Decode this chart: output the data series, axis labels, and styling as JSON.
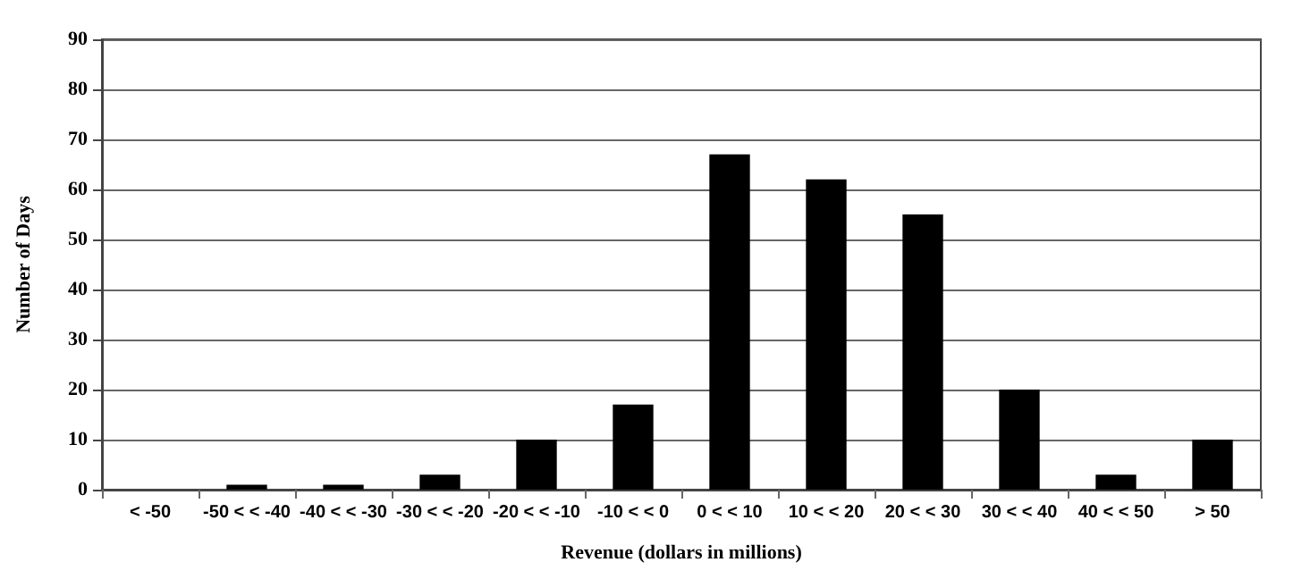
{
  "chart_data": {
    "type": "bar",
    "xlabel": "Revenue (dollars in millions)",
    "ylabel": "Number of Days",
    "categories": [
      "< -50",
      "-50 < < -40",
      "-40 < < -30",
      "-30 < < -20",
      "-20 < < -10",
      "-10 < < 0",
      "0 < < 10",
      "10 < < 20",
      "20 < < 30",
      "30 < < 40",
      "40 < < 50",
      "> 50"
    ],
    "values": [
      0,
      1,
      1,
      3,
      10,
      17,
      67,
      62,
      55,
      20,
      3,
      10
    ],
    "color": "#000000",
    "ylim": [
      0,
      90
    ],
    "yticks": [
      0,
      10,
      20,
      30,
      40,
      50,
      60,
      70,
      80,
      90
    ],
    "grid": "y"
  }
}
